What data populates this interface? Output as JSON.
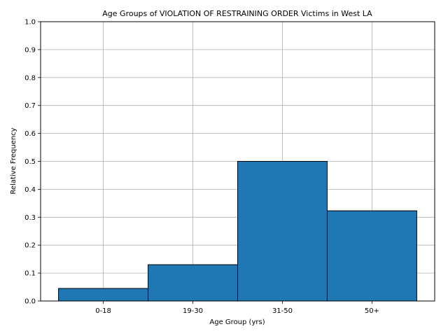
{
  "chart_data": {
    "type": "bar",
    "title": "Age Groups of VIOLATION OF RESTRAINING ORDER Victims in West LA",
    "xlabel": "Age Group (yrs)",
    "ylabel": "Relative Frequency",
    "categories": [
      "0-18",
      "19-30",
      "31-50",
      "50+"
    ],
    "values": [
      0.045,
      0.13,
      0.5,
      0.323
    ],
    "ylim": [
      0,
      1.0
    ],
    "yticks": [
      "0.0",
      "0.1",
      "0.2",
      "0.3",
      "0.4",
      "0.5",
      "0.6",
      "0.7",
      "0.8",
      "0.9",
      "1.0"
    ],
    "grid": true,
    "bar_color": "#1f77b4",
    "bar_edge_color": "#000000"
  }
}
